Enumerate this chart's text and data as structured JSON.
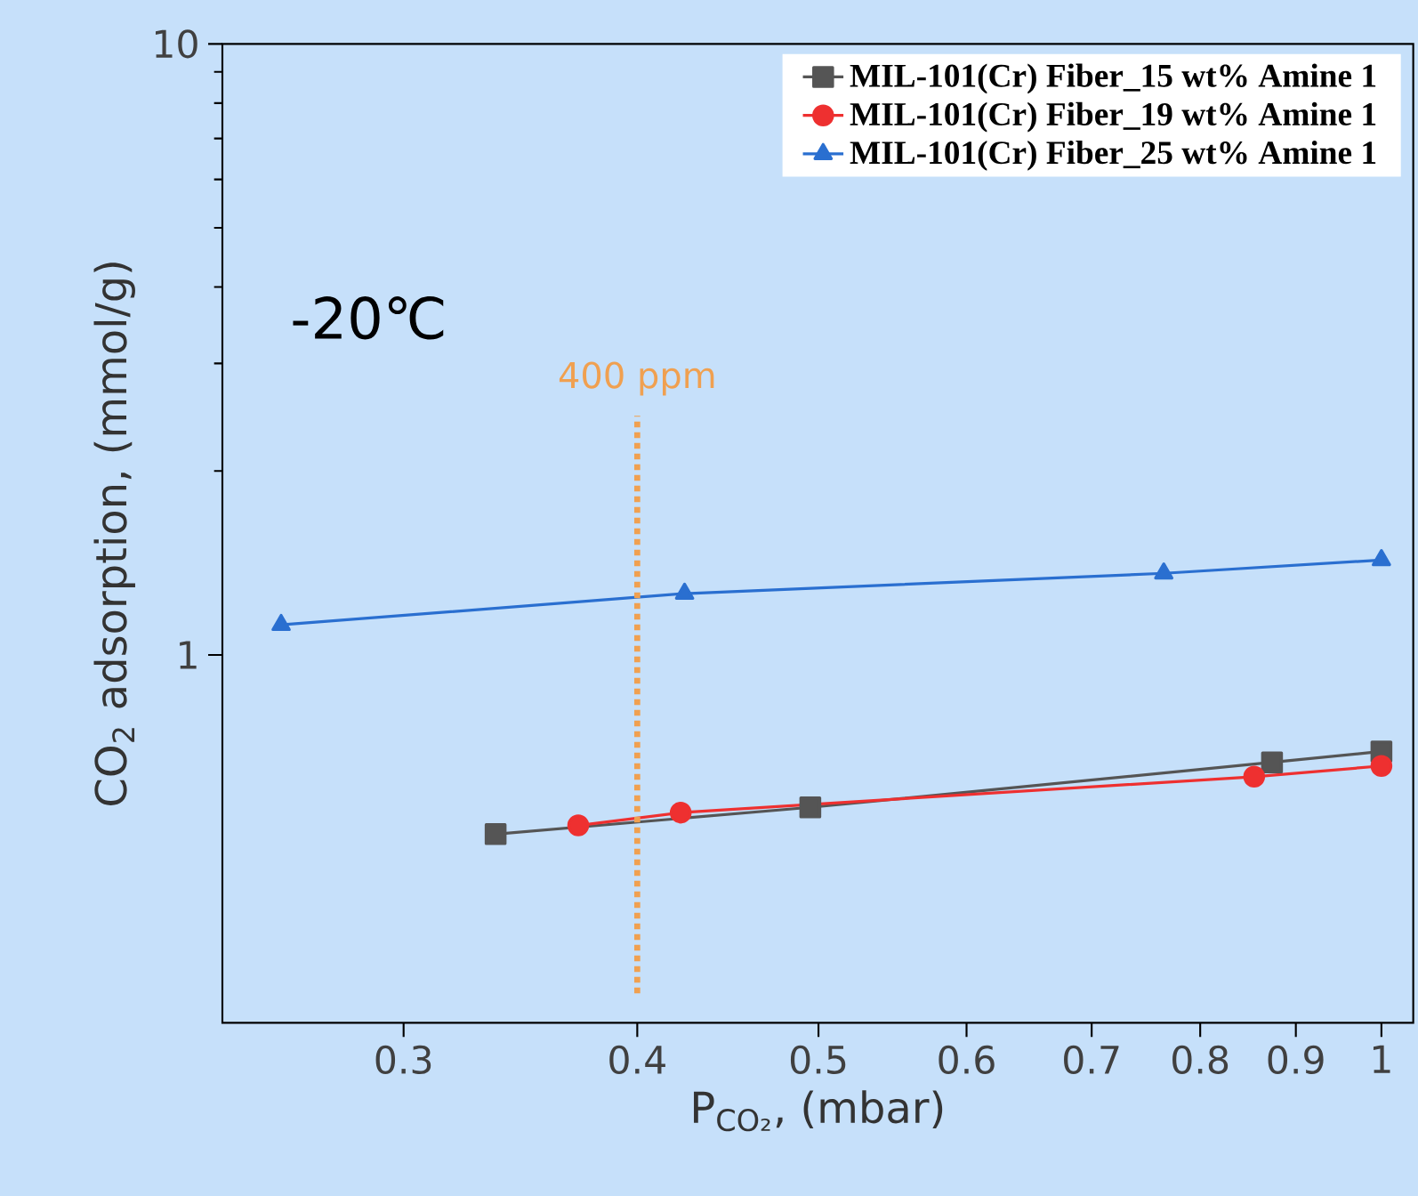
{
  "chart_data": {
    "type": "line",
    "xlabel": "P$_{CO₂}$, (mbar)",
    "ylabel": "CO$_{2}$ adsorption, (mmol/g)",
    "log": "xy",
    "xlim": [
      0.24,
      1.04
    ],
    "ylim": [
      0.25,
      10
    ],
    "xticks": [
      0.3,
      0.4,
      0.5,
      0.6,
      0.7,
      0.8,
      0.9,
      1
    ],
    "yticks": [
      1,
      10
    ],
    "grid": false,
    "legend": "top right",
    "annotations": [
      "-20℃"
    ],
    "ref_lines": [
      {
        "axis": "x",
        "value": 0.4,
        "label": "400 ppm",
        "color": "#f0a050",
        "line_style": "dotted"
      }
    ],
    "series": [
      {
        "name": "MIL-101(Cr) Fiber_15 wt% Amine 1",
        "color": "#555555",
        "marker": "square",
        "x": [
          0.336,
          0.495,
          0.874,
          1.0
        ],
        "values": [
          0.509,
          0.563,
          0.667,
          0.695
        ]
      },
      {
        "name": "MIL-101(Cr) Fiber_19 wt% Amine 1",
        "color": "#ee3030",
        "marker": "circle",
        "x": [
          0.372,
          0.422,
          0.855,
          1.0
        ],
        "values": [
          0.526,
          0.552,
          0.632,
          0.658
        ]
      },
      {
        "name": "MIL-101(Cr) Fiber_25 wt% Amine 1",
        "color": "#2a6fd0",
        "marker": "triangle",
        "x": [
          0.258,
          0.424,
          0.765,
          1.0
        ],
        "values": [
          1.12,
          1.26,
          1.36,
          1.43
        ]
      }
    ]
  }
}
